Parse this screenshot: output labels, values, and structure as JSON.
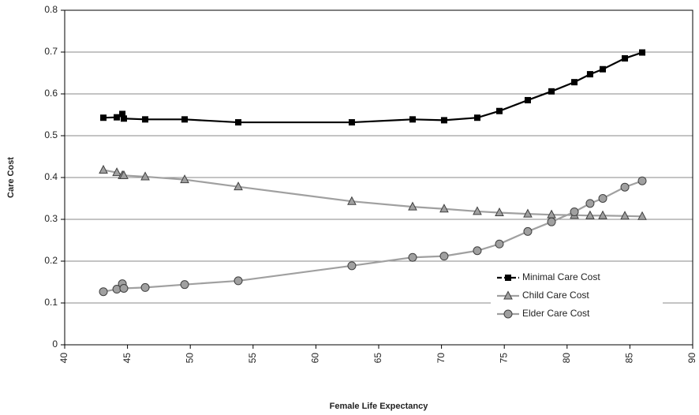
{
  "chart_data": {
    "type": "line",
    "xlabel": "Female Life Expectancy",
    "ylabel": "Care Cost",
    "x": [
      43.08,
      44.15,
      44.59,
      44.71,
      46.41,
      49.55,
      53.82,
      62.86,
      67.7,
      70.21,
      72.85,
      74.61,
      76.87,
      78.76,
      80.58,
      81.83,
      82.84,
      84.6,
      85.98
    ],
    "series": [
      {
        "name": "Minimal Care Cost",
        "color": "#000000",
        "marker": "square",
        "values": [
          0.543,
          0.544,
          0.552,
          0.541,
          0.539,
          0.539,
          0.532,
          0.532,
          0.539,
          0.537,
          0.543,
          0.559,
          0.585,
          0.606,
          0.628,
          0.647,
          0.659,
          0.685,
          0.699
        ]
      },
      {
        "name": "Child Care Cost",
        "color": "#a0a0a0",
        "marker": "triangle",
        "values": [
          0.418,
          0.412,
          0.405,
          0.405,
          0.402,
          0.395,
          0.378,
          0.343,
          0.33,
          0.325,
          0.319,
          0.316,
          0.313,
          0.311,
          0.31,
          0.309,
          0.309,
          0.308,
          0.307
        ]
      },
      {
        "name": "Elder Care Cost",
        "color": "#a0a0a0",
        "marker": "circle",
        "values": [
          0.127,
          0.133,
          0.146,
          0.135,
          0.137,
          0.144,
          0.153,
          0.189,
          0.209,
          0.212,
          0.225,
          0.241,
          0.271,
          0.294,
          0.318,
          0.338,
          0.35,
          0.377,
          0.392
        ]
      }
    ],
    "xlim": [
      40,
      90
    ],
    "xticks": [
      40,
      45,
      50,
      55,
      60,
      65,
      70,
      75,
      80,
      85,
      90
    ],
    "ylim": [
      0,
      0.8
    ],
    "yticks": [
      0,
      0.1,
      0.2,
      0.3,
      0.4,
      0.5,
      0.6,
      0.7,
      0.8
    ],
    "grid": true,
    "legend": "lower right"
  }
}
